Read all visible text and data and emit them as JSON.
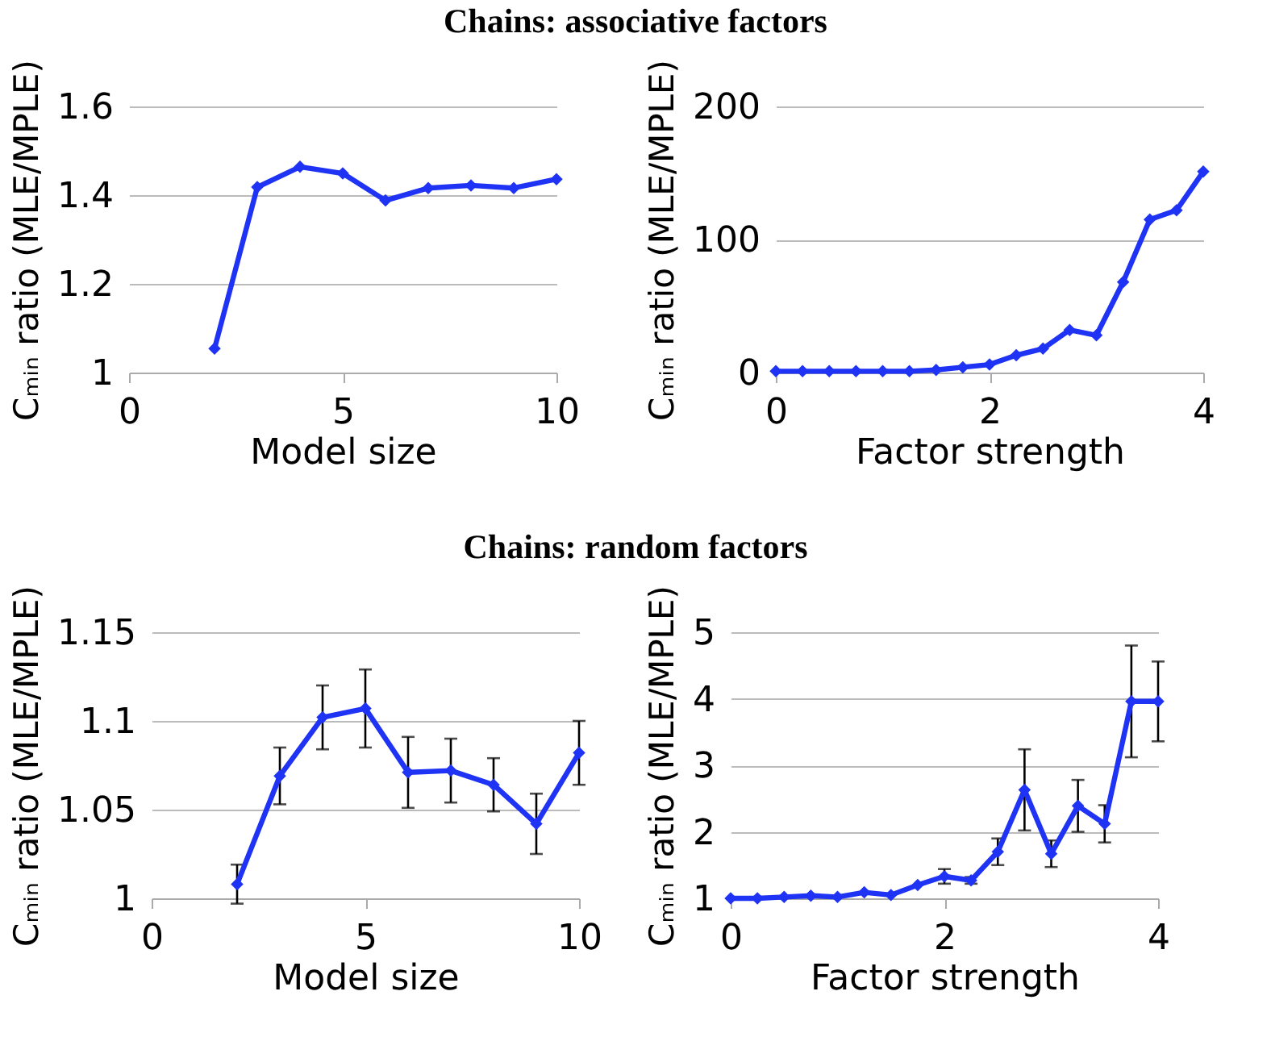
{
  "chart_data": [
    {
      "type": "line",
      "title": "Chains: associative factors",
      "xlabel": "Model size",
      "ylabel": "Cₘᵢₙ ratio (MLE/MPLE)",
      "x": [
        2,
        3,
        4,
        5,
        6,
        7,
        8,
        9,
        10
      ],
      "series": [
        {
          "color": "#1f33f5",
          "values": [
            1.054,
            1.418,
            1.464,
            1.449,
            1.388,
            1.416,
            1.422,
            1.416,
            1.436
          ]
        }
      ],
      "xlim": [
        0,
        10
      ],
      "xticks": [
        0,
        5,
        10
      ],
      "ylim": [
        1,
        1.6
      ],
      "yticks": [
        1,
        1.2,
        1.4,
        1.6
      ],
      "grid": "y",
      "marker": "diamond",
      "legend": false
    },
    {
      "type": "line",
      "xlabel": "Factor strength",
      "ylabel": "Cₘᵢₙ ratio (MLE/MPLE)",
      "x": [
        0,
        0.25,
        0.5,
        0.75,
        1,
        1.25,
        1.5,
        1.75,
        2,
        2.25,
        2.5,
        2.75,
        3,
        3.25,
        3.5,
        3.75,
        4
      ],
      "series": [
        {
          "color": "#1f33f5",
          "values": [
            1,
            1,
            1,
            1,
            1,
            1,
            2,
            4,
            6,
            13,
            18,
            32,
            28,
            68,
            115,
            122,
            151
          ]
        }
      ],
      "xlim": [
        0,
        4
      ],
      "xticks": [
        0,
        2,
        4
      ],
      "ylim": [
        0,
        200
      ],
      "yticks": [
        0,
        100,
        200
      ],
      "grid": "y",
      "marker": "diamond",
      "legend": false
    },
    {
      "type": "line",
      "title": "Chains: random factors",
      "xlabel": "Model size",
      "ylabel": "Cₘᵢₙ ratio (MLE/MPLE)",
      "x": [
        2,
        3,
        4,
        5,
        6,
        7,
        8,
        9,
        10
      ],
      "series": [
        {
          "color": "#1f33f5",
          "values": [
            1.008,
            1.069,
            1.102,
            1.107,
            1.071,
            1.072,
            1.064,
            1.042,
            1.082
          ],
          "errors": [
            0.011,
            0.016,
            0.018,
            0.022,
            0.02,
            0.018,
            0.015,
            0.017,
            0.018
          ]
        }
      ],
      "xlim": [
        0,
        10
      ],
      "xticks": [
        0,
        5,
        10
      ],
      "ylim": [
        1,
        1.15
      ],
      "yticks": [
        1,
        1.05,
        1.1,
        1.15
      ],
      "grid": "y",
      "marker": "diamond",
      "legend": false
    },
    {
      "type": "line",
      "xlabel": "Factor strength",
      "ylabel": "Cₘᵢₙ ratio (MLE/MPLE)",
      "x": [
        0,
        0.25,
        0.5,
        0.75,
        1,
        1.25,
        1.5,
        1.75,
        2,
        2.25,
        2.5,
        2.75,
        3,
        3.25,
        3.5,
        3.75,
        4
      ],
      "series": [
        {
          "color": "#1f33f5",
          "values": [
            1,
            1,
            1.02,
            1.04,
            1.02,
            1.09,
            1.05,
            1.2,
            1.33,
            1.27,
            1.7,
            2.63,
            1.67,
            2.39,
            2.12,
            3.96,
            3.96
          ],
          "errors": [
            null,
            null,
            null,
            null,
            null,
            null,
            null,
            null,
            0.11,
            0.05,
            0.2,
            0.61,
            0.2,
            0.39,
            0.28,
            0.84,
            0.6
          ]
        }
      ],
      "xlim": [
        0,
        4
      ],
      "xticks": [
        0,
        2,
        4
      ],
      "ylim": [
        1,
        5
      ],
      "yticks": [
        1,
        2,
        3,
        4,
        5
      ],
      "grid": "y",
      "marker": "diamond",
      "legend": false
    }
  ]
}
